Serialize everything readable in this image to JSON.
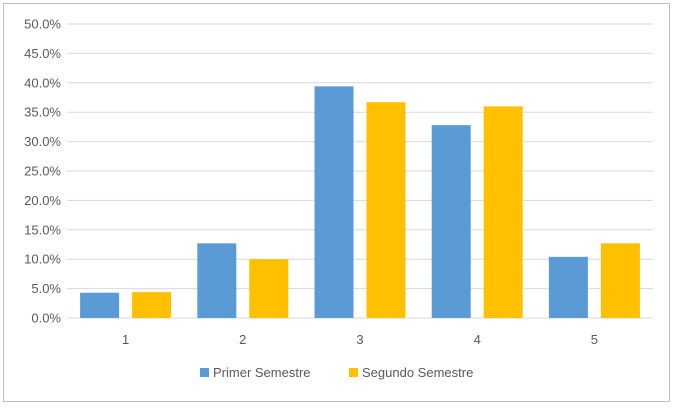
{
  "chart_data": {
    "type": "bar",
    "title": "",
    "xlabel": "",
    "ylabel": "",
    "categories": [
      "1",
      "2",
      "3",
      "4",
      "5"
    ],
    "series": [
      {
        "name": "Primer Semestre",
        "color": "#5b9bd5",
        "values": [
          4.3,
          12.7,
          39.4,
          32.8,
          10.4
        ]
      },
      {
        "name": "Segundo Semestre",
        "color": "#ffc000",
        "values": [
          4.4,
          10.0,
          36.7,
          36.0,
          12.7
        ]
      }
    ],
    "ylim": [
      0,
      50
    ],
    "y_ticks": [
      "0.0%",
      "5.0%",
      "10.0%",
      "15.0%",
      "20.0%",
      "25.0%",
      "30.0%",
      "35.0%",
      "40.0%",
      "45.0%",
      "50.0%"
    ],
    "grid": true,
    "legend_position": "bottom"
  }
}
